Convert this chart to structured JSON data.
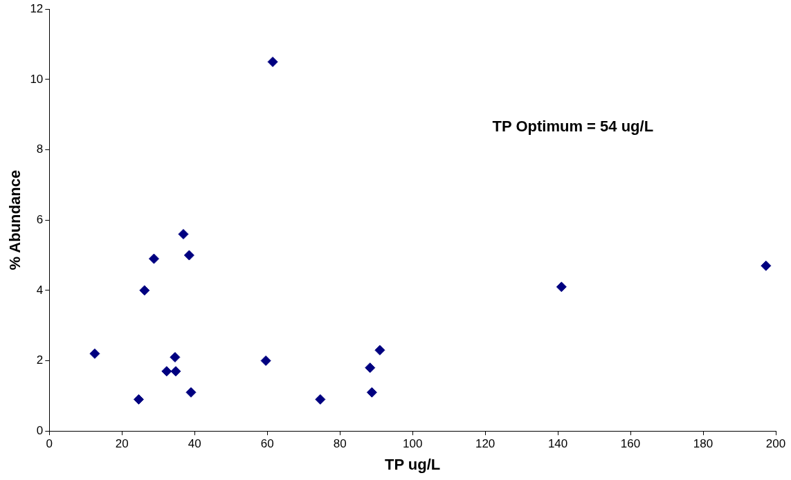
{
  "chart_data": {
    "type": "scatter",
    "xlabel": "TP ug/L",
    "ylabel": "% Abundance",
    "annotations": [
      "TP Optimum = 54 ug/L"
    ],
    "series": [
      {
        "color": "#000080",
        "x": [
          12.5,
          24.6,
          26.2,
          28.8,
          32.3,
          34.6,
          34.8,
          36.9,
          38.5,
          39.0,
          59.6,
          61.5,
          74.6,
          88.3,
          88.8,
          91.0,
          141.0,
          197.3
        ],
        "values": [
          2.2,
          0.9,
          4.0,
          4.9,
          1.7,
          2.1,
          1.7,
          5.6,
          5.0,
          1.1,
          2.0,
          10.5,
          0.9,
          1.8,
          1.1,
          2.3,
          4.1,
          4.7
        ]
      }
    ],
    "xlim": [
      0,
      200
    ],
    "xticks": [
      0,
      20,
      40,
      60,
      80,
      100,
      120,
      140,
      160,
      180,
      200
    ],
    "ylim": [
      0,
      12
    ],
    "yticks": [
      0,
      2,
      4,
      6,
      8,
      10,
      12
    ],
    "grid": false,
    "legend": false,
    "marker": "diamond"
  }
}
